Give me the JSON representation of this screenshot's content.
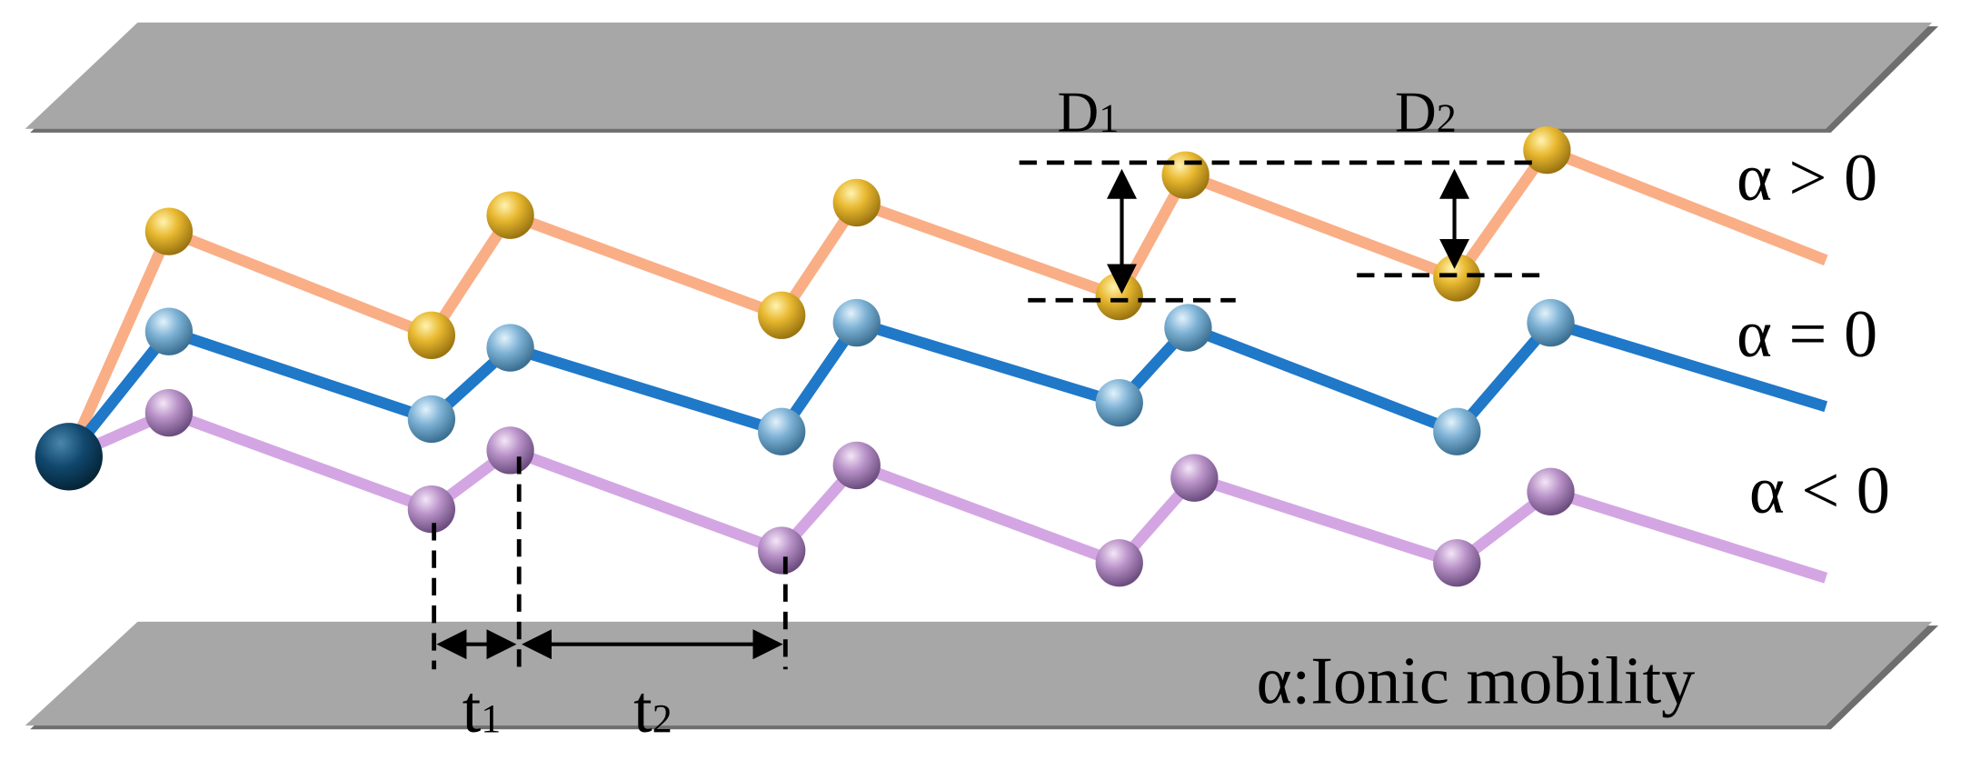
{
  "labels": {
    "d1": {
      "base": "D",
      "sub": "1"
    },
    "d2": {
      "base": "D",
      "sub": "2"
    },
    "alpha_pos": "α > 0",
    "alpha_zero": "α = 0",
    "alpha_neg": "α < 0",
    "t1": {
      "base": "t",
      "sub": "1"
    },
    "t2": {
      "base": "t",
      "sub": "2"
    },
    "legend": "α:Ionic mobility"
  }
}
